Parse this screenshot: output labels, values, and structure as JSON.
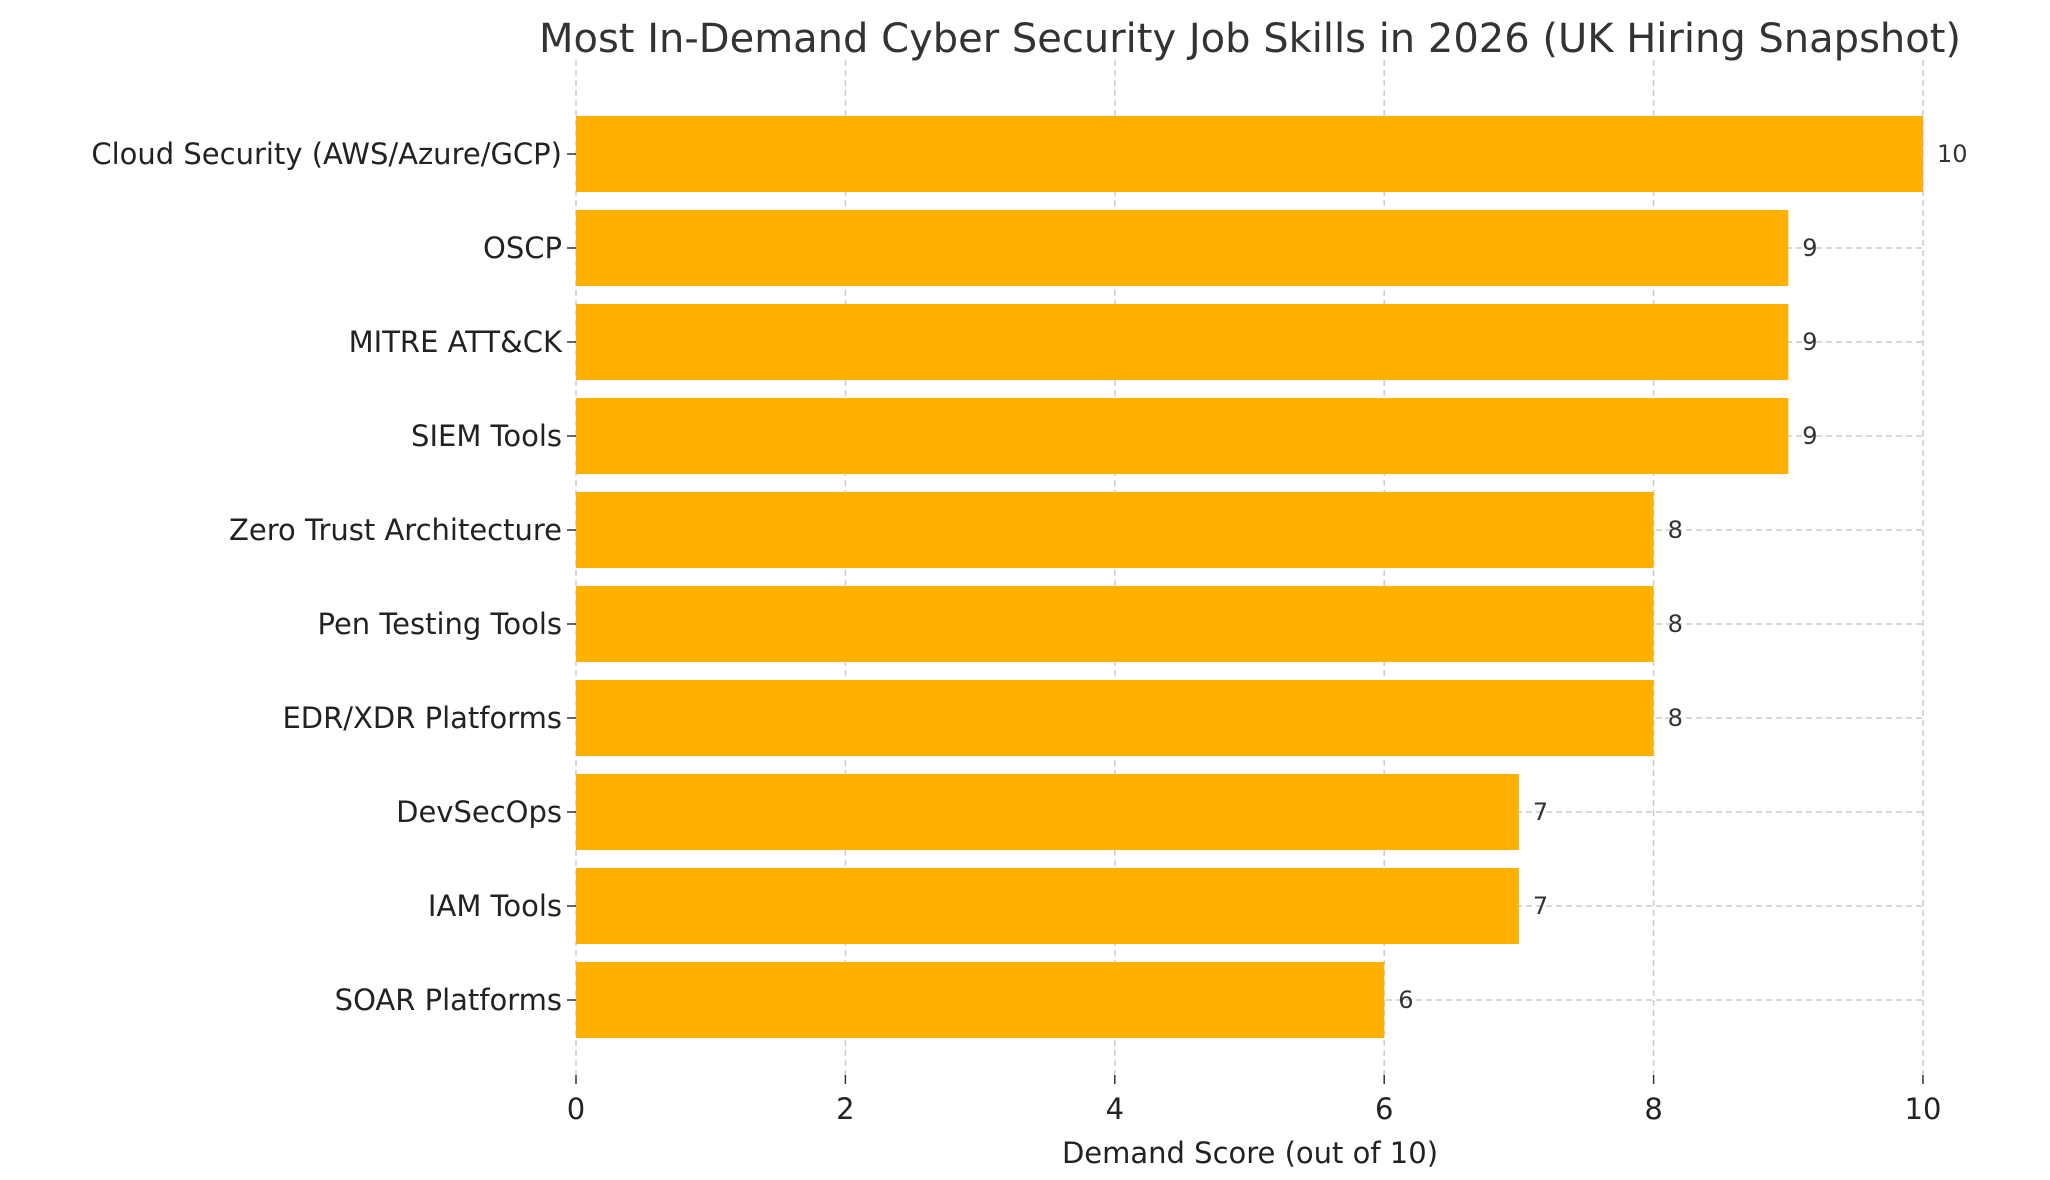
{
  "chart_data": {
    "type": "bar",
    "orientation": "horizontal",
    "title": "Most In-Demand Cyber Security Job Skills in 2026 (UK Hiring Snapshot)",
    "xlabel": "Demand Score (out of 10)",
    "ylabel": "",
    "xlim": [
      0,
      10
    ],
    "xticks": [
      0,
      2,
      4,
      6,
      8,
      10
    ],
    "grid": true,
    "categories": [
      "Cloud Security (AWS/Azure/GCP)",
      "OSCP",
      "MITRE ATT&CK",
      "SIEM Tools",
      "Zero Trust Architecture",
      "Pen Testing Tools",
      "EDR/XDR Platforms",
      "DevSecOps",
      "IAM Tools",
      "SOAR Platforms"
    ],
    "values": [
      10,
      9,
      9,
      9,
      8,
      8,
      8,
      7,
      7,
      6
    ],
    "bar_color": "#FFB000"
  }
}
